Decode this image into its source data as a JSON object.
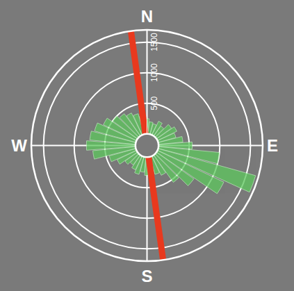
{
  "chart_data": {
    "type": "barpolar",
    "directions": [
      0,
      10,
      20,
      30,
      40,
      50,
      60,
      70,
      80,
      90,
      100,
      110,
      120,
      130,
      140,
      150,
      160,
      170,
      180,
      190,
      200,
      210,
      220,
      230,
      240,
      250,
      260,
      270,
      280,
      290,
      300,
      310,
      320,
      330,
      340,
      350
    ],
    "values": [
      250,
      200,
      180,
      250,
      200,
      300,
      350,
      300,
      400,
      550,
      1000,
      1650,
      1200,
      750,
      550,
      350,
      300,
      250,
      300,
      250,
      300,
      250,
      200,
      250,
      350,
      450,
      700,
      800,
      750,
      700,
      600,
      500,
      450,
      400,
      350,
      300
    ],
    "color": "#5ec85e",
    "rlim": [
      0,
      1700
    ],
    "rticks": [
      500,
      1000,
      1500
    ],
    "angular_ticks": [
      {
        "value": 0,
        "label": "N"
      },
      {
        "value": 90,
        "label": "E"
      },
      {
        "value": 180,
        "label": "S"
      },
      {
        "value": 270,
        "label": "W"
      }
    ],
    "grid": true,
    "line": {
      "azimuth": 352,
      "color": "#e8391e"
    }
  }
}
